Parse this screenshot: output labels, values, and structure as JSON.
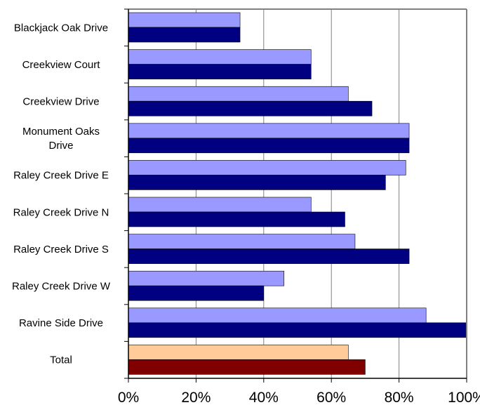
{
  "chart_data": {
    "type": "bar",
    "orientation": "horizontal",
    "categories": [
      [
        "Blackjack Oak Drive"
      ],
      [
        "Creekview Court"
      ],
      [
        "Creekview Drive"
      ],
      [
        "Monument Oaks",
        "Drive"
      ],
      [
        "Raley Creek Drive E"
      ],
      [
        "Raley Creek Drive N"
      ],
      [
        "Raley Creek Drive S"
      ],
      [
        "Raley Creek Drive W"
      ],
      [
        "Ravine Side Drive"
      ],
      [
        "Total"
      ]
    ],
    "series": [
      {
        "values": [
          33,
          54,
          65,
          83,
          82,
          54,
          67,
          46,
          88,
          65
        ]
      },
      {
        "values": [
          33,
          54,
          72,
          83,
          76,
          64,
          83,
          40,
          100,
          70
        ]
      }
    ],
    "colors": {
      "series_light": "#9999ff",
      "series_dark": "#000080",
      "total_light": "#ffcc99",
      "total_dark": "#800000",
      "gridline": "#808080",
      "frame": "#808080"
    },
    "xlim": [
      0,
      100
    ],
    "xticks": [
      "0%",
      "20%",
      "40%",
      "60%",
      "80%",
      "100%"
    ],
    "xtick_values": [
      0,
      20,
      40,
      60,
      80,
      100
    ],
    "grid": true,
    "title": "",
    "xlabel": "",
    "ylabel": ""
  }
}
